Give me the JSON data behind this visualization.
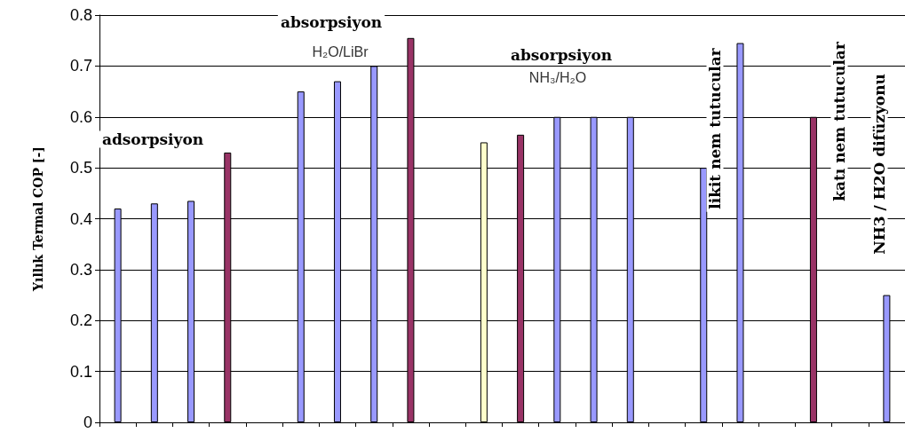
{
  "chart_data": {
    "type": "bar",
    "ylabel": "Yıllık Termal COP [-]",
    "categories": [
      null,
      null,
      null,
      null,
      null,
      null,
      null,
      null,
      null,
      null,
      null,
      null,
      null,
      null,
      null,
      null,
      null,
      null,
      null,
      null,
      null,
      null
    ],
    "values": [
      0.42,
      0.43,
      0.435,
      0.53,
      null,
      0.65,
      0.67,
      0.7,
      0.755,
      null,
      0.55,
      0.565,
      0.6,
      0.6,
      0.6,
      null,
      0.5,
      0.745,
      null,
      0.6,
      null,
      0.25
    ],
    "colors": [
      "#9999ff",
      "#9999ff",
      "#9999ff",
      "#993366",
      null,
      "#9999ff",
      "#9999ff",
      "#9999ff",
      "#993366",
      null,
      "#ffffcc",
      "#993366",
      "#9999ff",
      "#9999ff",
      "#9999ff",
      null,
      "#9999ff",
      "#9999ff",
      null,
      "#993366",
      null,
      "#9999ff"
    ],
    "ylim": [
      0,
      0.8
    ],
    "yticks": [
      0,
      0.1,
      0.2,
      0.3,
      0.4,
      0.5,
      0.6,
      0.7,
      0.8
    ],
    "grid": "y",
    "tick_labels": "y",
    "annotations": [
      "adsorpsiyon",
      "absorpsiyon",
      "H₂O/LiBr",
      "absorpsiyon",
      "NH₃/H₂O",
      "likit nem tutucular",
      "katı nem tutucular",
      "NH3 / H2O difüzyonu"
    ]
  }
}
